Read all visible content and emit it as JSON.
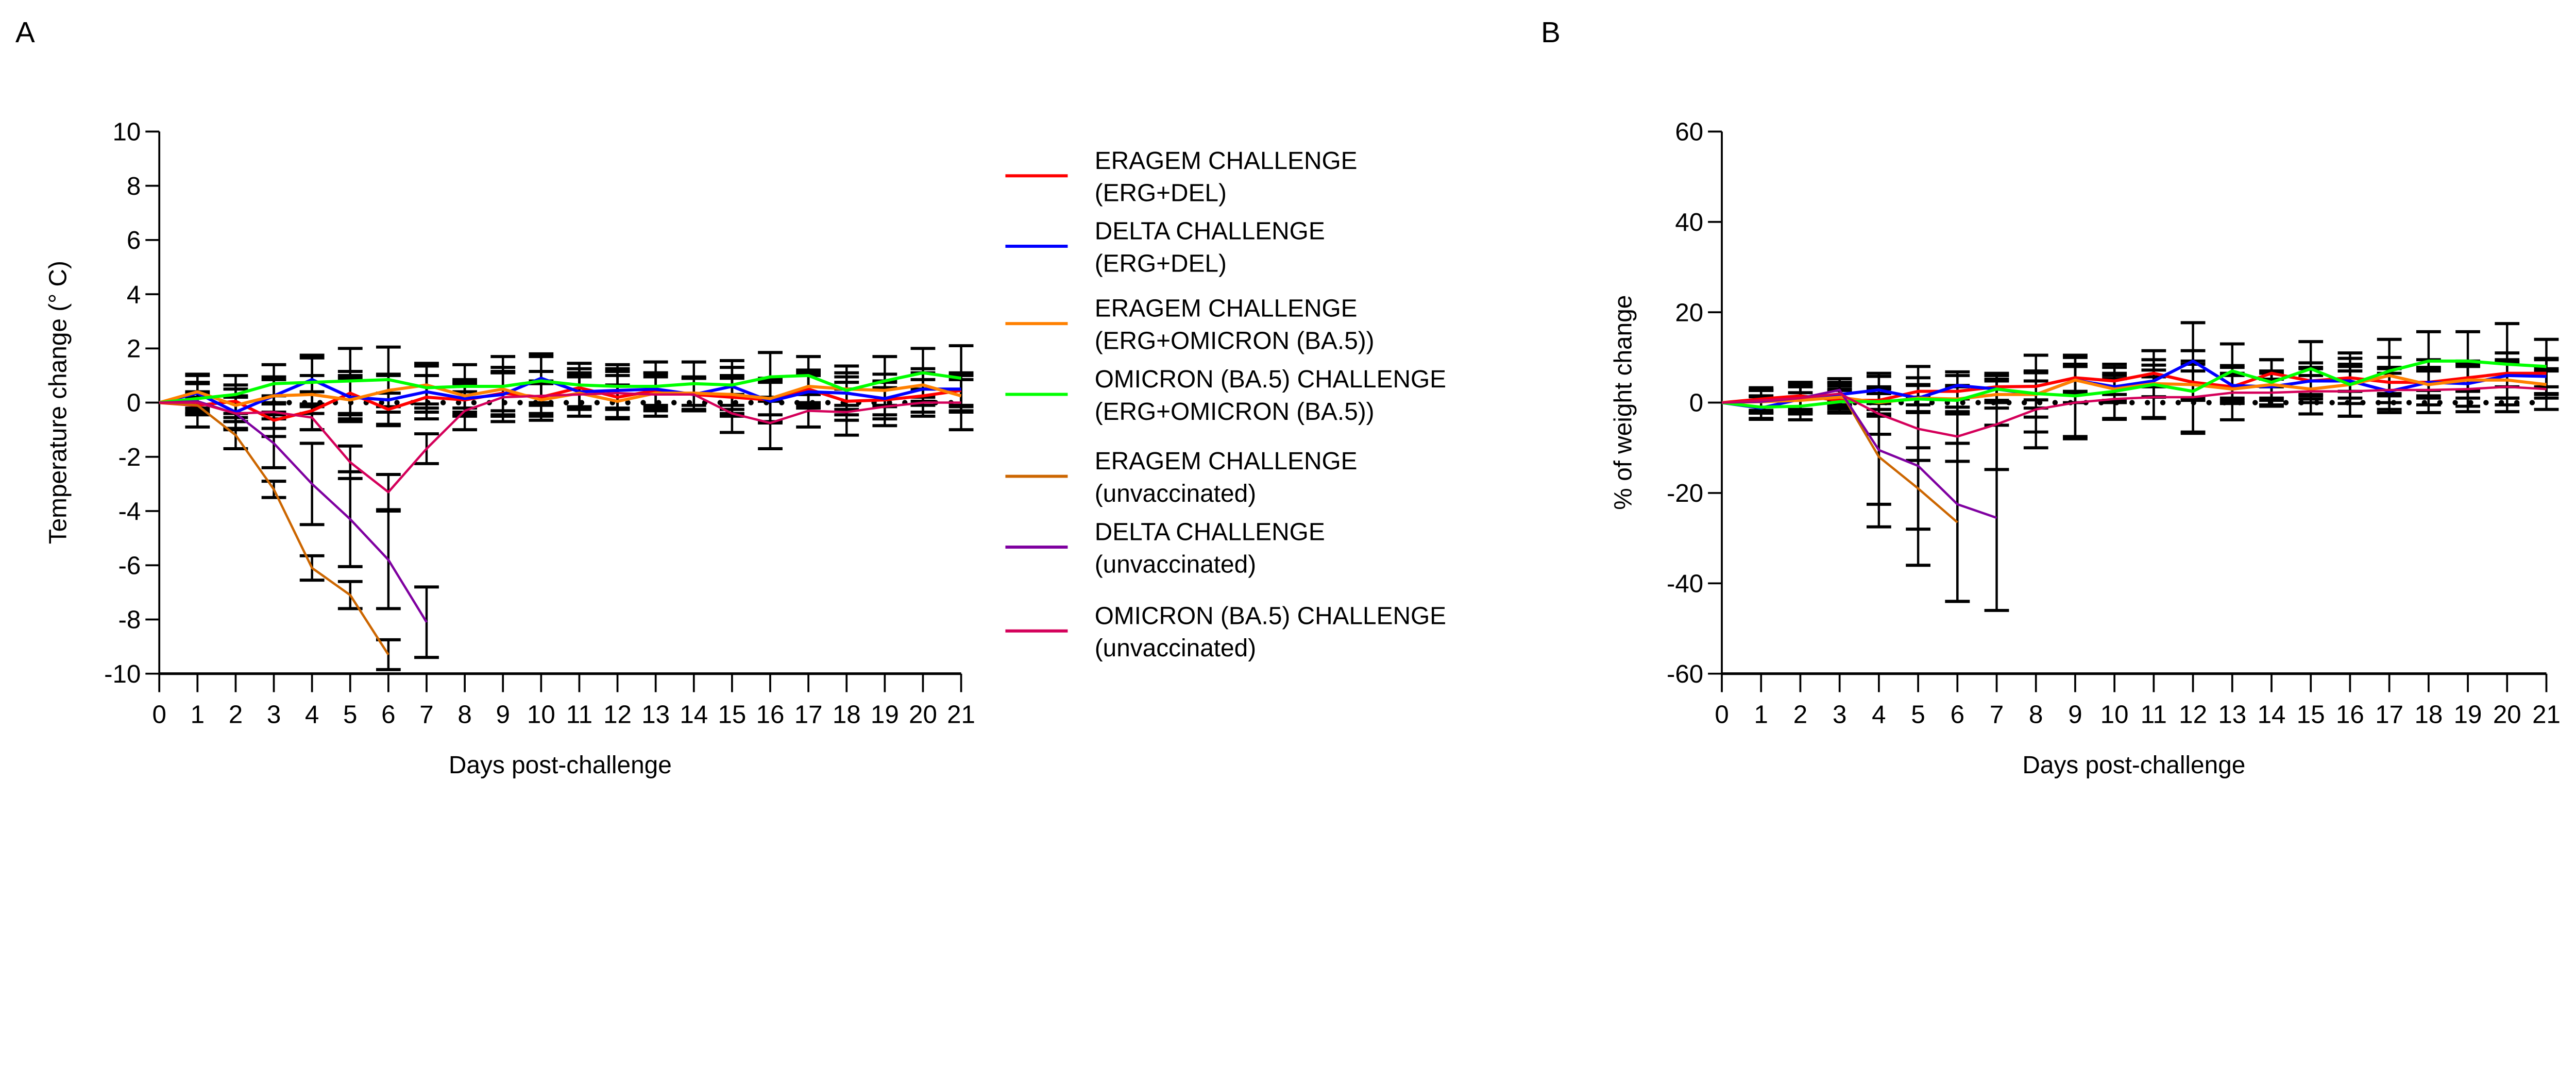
{
  "chart_data": [
    {
      "panel_label": "A",
      "type": "line",
      "xlabel": "Days post-challenge",
      "ylabel": "Temperature change (° C)",
      "xlim": [
        0,
        21
      ],
      "ylim": [
        -10,
        10
      ],
      "xticks": [
        0,
        1,
        2,
        3,
        4,
        5,
        6,
        7,
        8,
        9,
        10,
        11,
        12,
        13,
        14,
        15,
        16,
        17,
        18,
        19,
        20,
        21
      ],
      "yticks": [
        -10,
        -8,
        -6,
        -4,
        -2,
        0,
        2,
        4,
        6,
        8,
        10
      ],
      "reference_line": {
        "y": 0,
        "style": "dotted"
      },
      "error_bars": true,
      "grid": false,
      "legend_placement": "right",
      "series": [
        {
          "name": "ERAGEM CHALLENGE (ERG+DEL)",
          "color": "#ff0000",
          "values": [
            0,
            -0.1,
            0.05,
            -0.65,
            -0.3,
            0.35,
            -0.25,
            0.2,
            0.1,
            0.35,
            0.2,
            0.55,
            0.2,
            0.45,
            0.3,
            0.2,
            0.1,
            0.5,
            0.05,
            0.1,
            0.25,
            0.45
          ],
          "error": [
            0,
            0.8,
            0.6,
            0.6,
            0.7,
            0.8,
            0.6,
            0.8,
            0.6,
            0.8,
            0.6,
            0.7,
            0.8,
            0.6,
            0.6,
            0.7,
            0.8,
            0.6,
            0.7,
            0.7,
            0.6,
            0.6
          ]
        },
        {
          "name": "DELTA CHALLENGE (ERG+DEL)",
          "color": "#0000ff",
          "values": [
            0,
            0.35,
            -0.35,
            0.25,
            0.85,
            0.2,
            0.1,
            0.4,
            0.15,
            0.3,
            0.9,
            0.4,
            0.45,
            0.5,
            0.3,
            0.6,
            0.05,
            0.4,
            0.35,
            0.15,
            0.5,
            0.5
          ],
          "error": [
            0,
            0.7,
            0.6,
            0.6,
            0.9,
            0.8,
            0.9,
            0.6,
            0.6,
            0.8,
            0.9,
            0.6,
            0.7,
            0.6,
            0.6,
            0.7,
            0.8,
            0.6,
            0.6,
            0.6,
            0.6,
            0.6
          ]
        },
        {
          "name": "ERAGEM CHALLENGE (ERG+OMICRON (BA.5))",
          "color": "#ff8000",
          "values": [
            0,
            0.4,
            -0.1,
            0.25,
            0.3,
            0.1,
            0.45,
            0.65,
            0.25,
            0.5,
            0.1,
            0.35,
            0.05,
            0.35,
            0.35,
            0.3,
            0.15,
            0.6,
            0.5,
            0.45,
            0.65,
            0.25
          ],
          "error": [
            0,
            0.6,
            0.6,
            0.7,
            0.7,
            0.8,
            0.6,
            0.7,
            0.6,
            0.8,
            0.6,
            0.6,
            0.6,
            0.6,
            0.6,
            0.7,
            0.6,
            0.6,
            0.6,
            0.6,
            0.6,
            0.6
          ]
        },
        {
          "name": "OMICRON (BA.5) CHALLENGE (ERG+OMICRON (BA.5))",
          "color": "#00ff00",
          "values": [
            0,
            0.15,
            0.3,
            0.7,
            0.75,
            0.8,
            0.85,
            0.55,
            0.6,
            0.6,
            0.8,
            0.65,
            0.6,
            0.6,
            0.7,
            0.65,
            0.95,
            1.0,
            0.45,
            0.8,
            1.1,
            0.9
          ],
          "error": [
            0,
            0.6,
            0.7,
            0.7,
            0.9,
            1.2,
            1.2,
            0.9,
            0.8,
            1.1,
            0.9,
            0.8,
            0.8,
            0.9,
            0.8,
            0.9,
            0.9,
            0.7,
            0.9,
            0.9,
            0.9,
            1.2
          ]
        },
        {
          "name": "ERAGEM CHALLENGE (unvaccinated)",
          "color": "#cc6600",
          "values": [
            0,
            -0.1,
            -1.2,
            -3.2,
            -6.1,
            -7.1,
            -9.3
          ],
          "error": [
            0,
            0.3,
            0.5,
            0.3,
            0.45,
            0.5,
            0.55
          ]
        },
        {
          "name": "DELTA CHALLENGE (unvaccinated)",
          "color": "#7f00a0",
          "values": [
            0,
            0.05,
            -0.4,
            -1.5,
            -3.0,
            -4.3,
            -5.8,
            -8.1
          ],
          "error": [
            0,
            0.3,
            0.6,
            0.9,
            1.5,
            1.75,
            1.8,
            1.3
          ]
        },
        {
          "name": "OMICRON (BA.5) CHALLENGE (unvaccinated)",
          "color": "#d4005a",
          "values": [
            0,
            0,
            -0.4,
            -0.35,
            -0.55,
            -2.2,
            -3.3,
            -1.7,
            -0.3,
            0.2,
            0.25,
            0.3,
            0.35,
            0.3,
            0.3,
            -0.4,
            -0.75,
            -0.3,
            -0.35,
            -0.15,
            0,
            0
          ],
          "error": [
            0,
            0.4,
            0.6,
            0.6,
            0.45,
            0.6,
            0.65,
            0.55,
            0.7,
            0.9,
            0.9,
            0.8,
            0.9,
            0.8,
            0.6,
            0.7,
            0.95,
            0.6,
            0.85,
            0.7,
            0.5,
            1.0
          ]
        }
      ]
    },
    {
      "panel_label": "B",
      "type": "line",
      "xlabel": "Days post-challenge",
      "ylabel": "% of weight change",
      "xlim": [
        0,
        21
      ],
      "ylim": [
        -60,
        60
      ],
      "xticks": [
        0,
        1,
        2,
        3,
        4,
        5,
        6,
        7,
        8,
        9,
        10,
        11,
        12,
        13,
        14,
        15,
        16,
        17,
        18,
        19,
        20,
        21
      ],
      "yticks": [
        -60,
        -40,
        -20,
        0,
        20,
        40,
        60
      ],
      "reference_line": {
        "y": 0,
        "style": "dotted"
      },
      "error_bars": true,
      "grid": false,
      "series": [
        {
          "name": "ERAGEM CHALLENGE (ERG+DEL)",
          "color": "#ff0000",
          "values": [
            0,
            0.8,
            1.5,
            0.5,
            0.5,
            2.5,
            2.5,
            3.5,
            3.6,
            5.5,
            4.8,
            6.5,
            4.5,
            3.5,
            6.5,
            4.8,
            5.5,
            4.5,
            4.5,
            5.5,
            6.5,
            6.5
          ],
          "error": [
            0,
            2.5,
            3,
            2.5,
            3,
            3,
            3.5,
            3,
            3,
            3,
            3,
            3,
            4,
            3,
            3,
            3,
            3,
            3,
            3,
            3,
            3,
            3
          ]
        },
        {
          "name": "DELTA CHALLENGE (ERG+DEL)",
          "color": "#0000ff",
          "values": [
            0,
            -1.2,
            0.8,
            1.8,
            2.8,
            1.0,
            3.8,
            3.0,
            1.8,
            5.0,
            3.5,
            4.8,
            9.2,
            3.8,
            3.5,
            4.8,
            4.8,
            2.5,
            4.5,
            4.2,
            6.0,
            5.8
          ],
          "error": [
            0,
            2.5,
            3,
            2.5,
            3,
            3,
            3,
            3,
            3,
            3,
            3,
            3.5,
            8.5,
            4,
            3,
            4,
            5,
            4,
            5,
            5,
            5,
            4
          ]
        },
        {
          "name": "ERAGEM CHALLENGE (ERG+OMICRON (BA.5))",
          "color": "#ff8000",
          "values": [
            0,
            0.2,
            0.5,
            1.2,
            0,
            1.0,
            0.8,
            1.8,
            1.8,
            5.0,
            3.0,
            4.2,
            4.0,
            3.0,
            4.0,
            3.0,
            4.0,
            6.0,
            4.0,
            5.0,
            5.0,
            4.0
          ],
          "error": [
            0,
            2.5,
            3,
            2.5,
            3,
            3,
            3,
            3,
            5,
            5,
            3,
            3,
            3,
            3,
            3,
            3,
            3,
            4,
            3,
            4,
            4,
            3
          ]
        },
        {
          "name": "OMICRON (BA.5) CHALLENGE (ERG+OMICRON (BA.5))",
          "color": "#00ff00",
          "values": [
            0,
            -1.0,
            -0.8,
            0.2,
            0.2,
            0.8,
            0.5,
            3.0,
            2.0,
            1.5,
            2.5,
            4.0,
            2.5,
            7.0,
            4.5,
            7.5,
            4.0,
            7.0,
            9.2,
            9.2,
            8.5,
            8.0
          ],
          "error": [
            0,
            2.5,
            3,
            2.5,
            3,
            3,
            3,
            3,
            8.5,
            9,
            6,
            7.5,
            9,
            6,
            5,
            6,
            7,
            7,
            6.5,
            6.5,
            9,
            6
          ]
        },
        {
          "name": "ERAGEM CHALLENGE (unvaccinated)",
          "color": "#cc6600",
          "values": [
            0,
            0.2,
            1.0,
            2.8,
            -12,
            -19,
            -26.5
          ],
          "error": [
            0,
            2.5,
            3,
            2.5,
            10.5,
            9,
            17.5
          ]
        },
        {
          "name": "DELTA CHALLENGE (unvaccinated)",
          "color": "#7f00a0",
          "values": [
            0,
            0.2,
            1.0,
            2.8,
            -10.5,
            -14,
            -22.5,
            -25.5
          ],
          "error": [
            0,
            2.5,
            3,
            2.5,
            17,
            22,
            21.5,
            20.5
          ]
        },
        {
          "name": "OMICRON (BA.5) CHALLENGE (unvaccinated)",
          "color": "#d4005a",
          "values": [
            0,
            0.5,
            1.0,
            2.0,
            -2.5,
            -5.8,
            -7.5,
            -4.8,
            -1.5,
            0,
            0.8,
            1.2,
            1.2,
            2.2,
            2.2,
            2.5,
            2.5,
            2.8,
            2.8,
            3.0,
            3.5,
            3.0
          ],
          "error": [
            0,
            2.5,
            3,
            2.5,
            4.5,
            7,
            5.5,
            10,
            8.5,
            8,
            4.5,
            4.5,
            8,
            6,
            3,
            5,
            5.5,
            5,
            5,
            5,
            5.5,
            4.5
          ]
        }
      ]
    }
  ]
}
